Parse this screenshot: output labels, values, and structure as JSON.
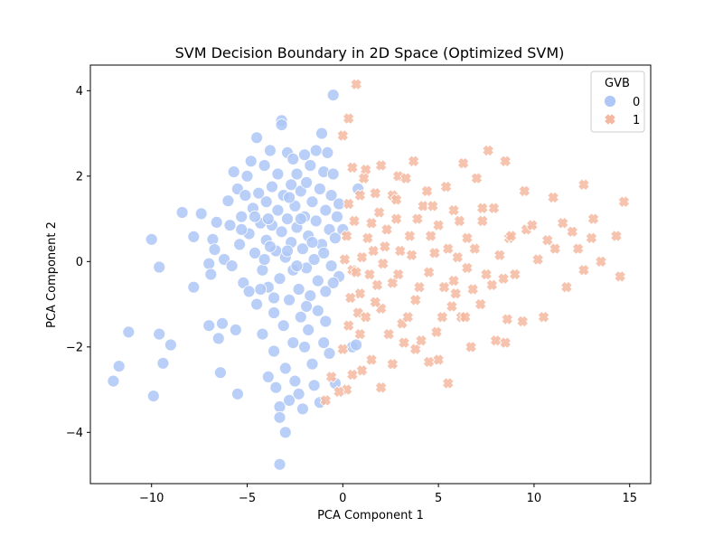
{
  "chart_data": {
    "type": "scatter",
    "title": "SVM Decision Boundary in 2D Space (Optimized SVM)",
    "xlabel": "PCA Component 1",
    "ylabel": "PCA Component 2",
    "xlim": [
      -13.2,
      16.1
    ],
    "ylim": [
      -5.2,
      4.6
    ],
    "xticks": [
      -10,
      -5,
      0,
      5,
      10,
      15
    ],
    "yticks": [
      -4,
      -2,
      0,
      2,
      4
    ],
    "grid": false,
    "legend": {
      "title": "GVB",
      "placement": "top-right",
      "entries": [
        "0",
        "1"
      ]
    },
    "series": [
      {
        "name": "0",
        "marker": "circle",
        "color": "#aec7f7",
        "points": [
          [
            -12.0,
            -2.8
          ],
          [
            -11.7,
            -2.45
          ],
          [
            -11.2,
            -1.65
          ],
          [
            -9.9,
            -3.15
          ],
          [
            -10.0,
            0.52
          ],
          [
            -9.6,
            -0.13
          ],
          [
            -9.6,
            -1.7
          ],
          [
            -9.4,
            -2.38
          ],
          [
            -9.0,
            -1.95
          ],
          [
            -8.4,
            1.15
          ],
          [
            -7.8,
            0.58
          ],
          [
            -7.8,
            -0.6
          ],
          [
            -7.4,
            1.12
          ],
          [
            -7.0,
            -0.05
          ],
          [
            -6.9,
            -0.3
          ],
          [
            -6.8,
            0.52
          ],
          [
            -6.7,
            0.28
          ],
          [
            -7.0,
            -1.5
          ],
          [
            -6.6,
            0.92
          ],
          [
            -6.5,
            -1.8
          ],
          [
            -6.4,
            -2.6
          ],
          [
            -6.3,
            -1.45
          ],
          [
            -6.2,
            0.05
          ],
          [
            -6.0,
            1.42
          ],
          [
            -5.9,
            0.85
          ],
          [
            -5.8,
            -0.1
          ],
          [
            -5.7,
            2.1
          ],
          [
            -5.6,
            -1.6
          ],
          [
            -5.5,
            -3.1
          ],
          [
            -5.5,
            1.7
          ],
          [
            -5.4,
            0.4
          ],
          [
            -5.3,
            1.05
          ],
          [
            -5.2,
            -0.5
          ],
          [
            -5.1,
            1.55
          ],
          [
            -5.0,
            2.0
          ],
          [
            -4.9,
            0.65
          ],
          [
            -4.9,
            -0.7
          ],
          [
            -4.8,
            2.35
          ],
          [
            -4.7,
            1.25
          ],
          [
            -4.6,
            0.2
          ],
          [
            -4.5,
            -1.0
          ],
          [
            -4.5,
            2.9
          ],
          [
            -4.4,
            1.6
          ],
          [
            -4.3,
            0.9
          ],
          [
            -4.2,
            -0.2
          ],
          [
            -4.2,
            -1.7
          ],
          [
            -4.1,
            2.25
          ],
          [
            -4.0,
            1.4
          ],
          [
            -4.0,
            0.5
          ],
          [
            -3.9,
            -2.7
          ],
          [
            -3.9,
            -0.6
          ],
          [
            -3.8,
            2.6
          ],
          [
            -3.7,
            1.75
          ],
          [
            -3.7,
            0.85
          ],
          [
            -3.6,
            -1.2
          ],
          [
            -3.6,
            -2.1
          ],
          [
            -3.5,
            0.25
          ],
          [
            -3.5,
            -2.95
          ],
          [
            -3.4,
            1.2
          ],
          [
            -3.4,
            2.05
          ],
          [
            -3.3,
            -0.4
          ],
          [
            -3.3,
            -3.4
          ],
          [
            -3.3,
            -3.65
          ],
          [
            -3.3,
            -4.75
          ],
          [
            -3.2,
            0.7
          ],
          [
            -3.2,
            3.3
          ],
          [
            -3.2,
            3.2
          ],
          [
            -3.1,
            1.55
          ],
          [
            -3.1,
            -1.5
          ],
          [
            -3.0,
            0.1
          ],
          [
            -3.0,
            -2.5
          ],
          [
            -3.0,
            -4.0
          ],
          [
            -2.9,
            2.55
          ],
          [
            -2.9,
            1.0
          ],
          [
            -2.8,
            -0.9
          ],
          [
            -2.8,
            -3.25
          ],
          [
            -2.7,
            0.45
          ],
          [
            -2.7,
            1.8
          ],
          [
            -2.6,
            2.4
          ],
          [
            -2.6,
            -0.2
          ],
          [
            -2.6,
            -1.9
          ],
          [
            -2.5,
            1.3
          ],
          [
            -2.5,
            -2.8
          ],
          [
            -2.4,
            0.8
          ],
          [
            -2.4,
            2.05
          ],
          [
            -2.3,
            -0.65
          ],
          [
            -2.3,
            -3.1
          ],
          [
            -2.2,
            1.65
          ],
          [
            -2.2,
            -1.3
          ],
          [
            -2.1,
            0.3
          ],
          [
            -2.1,
            -3.45
          ],
          [
            -2.0,
            2.5
          ],
          [
            -2.0,
            1.05
          ],
          [
            -2.0,
            -2.0
          ],
          [
            -1.9,
            -0.15
          ],
          [
            -1.9,
            1.85
          ],
          [
            -1.8,
            0.6
          ],
          [
            -1.8,
            -1.6
          ],
          [
            -1.7,
            2.25
          ],
          [
            -1.7,
            -0.8
          ],
          [
            -1.6,
            1.4
          ],
          [
            -1.6,
            -2.4
          ],
          [
            -1.5,
            0.05
          ],
          [
            -1.5,
            -2.9
          ],
          [
            -1.4,
            2.6
          ],
          [
            -1.4,
            0.95
          ],
          [
            -1.3,
            -0.45
          ],
          [
            -1.3,
            -1.15
          ],
          [
            -1.2,
            1.7
          ],
          [
            -1.2,
            -3.3
          ],
          [
            -1.1,
            3.0
          ],
          [
            -1.1,
            0.4
          ],
          [
            -1.0,
            -1.9
          ],
          [
            -1.0,
            2.1
          ],
          [
            -0.9,
            1.2
          ],
          [
            -0.9,
            -0.7
          ],
          [
            -0.8,
            2.55
          ],
          [
            -0.7,
            0.75
          ],
          [
            -0.7,
            -2.15
          ],
          [
            -0.6,
            1.55
          ],
          [
            -0.6,
            -0.1
          ],
          [
            -0.5,
            3.9
          ],
          [
            -0.5,
            2.05
          ],
          [
            -0.4,
            0.55
          ],
          [
            -0.4,
            -2.85
          ],
          [
            -0.3,
            1.05
          ],
          [
            -0.2,
            -0.35
          ],
          [
            -0.2,
            1.35
          ],
          [
            0.0,
            0.75
          ],
          [
            0.5,
            -2.0
          ],
          [
            0.7,
            -1.95
          ],
          [
            0.8,
            1.7
          ],
          [
            -4.6,
            1.05
          ],
          [
            -3.8,
            0.35
          ],
          [
            -2.9,
            0.25
          ],
          [
            -2.2,
            1.0
          ],
          [
            -1.6,
            0.45
          ],
          [
            -3.6,
            -0.85
          ],
          [
            -2.4,
            -0.1
          ],
          [
            -4.1,
            0.05
          ],
          [
            -1.0,
            0.2
          ],
          [
            -0.5,
            -0.5
          ],
          [
            -1.9,
            -1.05
          ],
          [
            -3.9,
            1.0
          ],
          [
            -2.8,
            1.5
          ],
          [
            -5.3,
            0.75
          ],
          [
            -4.3,
            -0.65
          ],
          [
            -0.9,
            -1.4
          ]
        ]
      },
      {
        "name": "1",
        "marker": "x",
        "color": "#f4b8a0",
        "points": [
          [
            0.7,
            4.15
          ],
          [
            0.3,
            3.35
          ],
          [
            0.0,
            2.95
          ],
          [
            0.5,
            2.2
          ],
          [
            1.2,
            2.15
          ],
          [
            1.7,
            1.6
          ],
          [
            2.0,
            2.25
          ],
          [
            2.9,
            2.0
          ],
          [
            3.7,
            2.35
          ],
          [
            4.4,
            1.65
          ],
          [
            5.4,
            1.75
          ],
          [
            6.3,
            2.3
          ],
          [
            7.0,
            1.95
          ],
          [
            7.6,
            2.6
          ],
          [
            8.5,
            2.35
          ],
          [
            9.5,
            1.65
          ],
          [
            11.0,
            1.5
          ],
          [
            12.6,
            1.8
          ],
          [
            14.7,
            1.4
          ],
          [
            13.1,
            1.0
          ],
          [
            14.3,
            0.6
          ],
          [
            13.0,
            0.55
          ],
          [
            12.3,
            0.3
          ],
          [
            11.1,
            0.3
          ],
          [
            10.7,
            0.5
          ],
          [
            10.2,
            0.05
          ],
          [
            9.6,
            0.75
          ],
          [
            8.7,
            0.55
          ],
          [
            7.9,
            1.25
          ],
          [
            7.3,
            0.95
          ],
          [
            6.5,
            0.55
          ],
          [
            5.8,
            1.2
          ],
          [
            5.0,
            0.85
          ],
          [
            4.2,
            1.3
          ],
          [
            3.5,
            0.6
          ],
          [
            2.8,
            1.0
          ],
          [
            2.2,
            0.35
          ],
          [
            1.5,
            0.9
          ],
          [
            1.0,
            0.1
          ],
          [
            0.5,
            -0.2
          ],
          [
            0.2,
            0.6
          ],
          [
            0.9,
            -0.75
          ],
          [
            1.4,
            -0.3
          ],
          [
            2.0,
            -1.1
          ],
          [
            2.6,
            -0.5
          ],
          [
            3.1,
            -1.45
          ],
          [
            3.8,
            -0.9
          ],
          [
            4.5,
            -0.25
          ],
          [
            5.2,
            -1.3
          ],
          [
            5.9,
            -0.75
          ],
          [
            6.5,
            -0.15
          ],
          [
            7.2,
            -1.0
          ],
          [
            7.8,
            -0.55
          ],
          [
            8.6,
            -1.35
          ],
          [
            9.4,
            -1.4
          ],
          [
            10.5,
            -1.3
          ],
          [
            11.7,
            -0.6
          ],
          [
            12.6,
            -0.2
          ],
          [
            13.5,
            0.0
          ],
          [
            14.5,
            -0.35
          ],
          [
            8.0,
            -1.85
          ],
          [
            8.5,
            -1.9
          ],
          [
            6.7,
            -2.0
          ],
          [
            5.5,
            -2.85
          ],
          [
            5.0,
            -2.3
          ],
          [
            4.5,
            -2.35
          ],
          [
            3.8,
            -2.05
          ],
          [
            3.2,
            -1.9
          ],
          [
            2.6,
            -2.4
          ],
          [
            2.0,
            -2.95
          ],
          [
            1.5,
            -2.3
          ],
          [
            1.0,
            -2.55
          ],
          [
            0.5,
            -2.65
          ],
          [
            0.2,
            -3.0
          ],
          [
            0.0,
            -2.05
          ],
          [
            -0.2,
            -3.05
          ],
          [
            -0.6,
            -2.7
          ],
          [
            -0.9,
            -3.25
          ],
          [
            0.8,
            -1.2
          ],
          [
            1.7,
            -0.95
          ],
          [
            2.4,
            -1.7
          ],
          [
            3.4,
            -1.3
          ],
          [
            4.1,
            -1.85
          ],
          [
            4.9,
            -1.65
          ],
          [
            5.7,
            -1.05
          ],
          [
            6.2,
            -1.3
          ],
          [
            3.0,
            0.25
          ],
          [
            1.9,
            1.15
          ],
          [
            0.9,
            1.55
          ],
          [
            1.3,
            0.55
          ],
          [
            2.6,
            1.55
          ],
          [
            3.3,
            1.95
          ],
          [
            4.6,
            0.6
          ],
          [
            5.5,
            0.3
          ],
          [
            6.1,
            0.95
          ],
          [
            6.9,
            0.3
          ],
          [
            7.5,
            -0.3
          ],
          [
            8.2,
            0.15
          ],
          [
            9.0,
            -0.3
          ],
          [
            11.5,
            0.9
          ],
          [
            0.3,
            1.35
          ],
          [
            0.6,
            0.95
          ],
          [
            1.1,
            1.95
          ],
          [
            0.7,
            -0.25
          ],
          [
            1.8,
            -0.55
          ],
          [
            2.3,
            0.75
          ],
          [
            2.9,
            -0.3
          ],
          [
            3.6,
            0.15
          ],
          [
            4.0,
            -0.6
          ],
          [
            4.8,
            0.2
          ],
          [
            5.3,
            -0.6
          ],
          [
            6.0,
            0.1
          ],
          [
            0.1,
            0.05
          ],
          [
            0.4,
            -0.85
          ],
          [
            1.6,
            0.25
          ],
          [
            2.1,
            -0.05
          ],
          [
            0.9,
            -1.7
          ],
          [
            2.8,
            1.45
          ],
          [
            3.9,
            1.0
          ],
          [
            4.7,
            1.3
          ],
          [
            8.8,
            0.6
          ],
          [
            7.3,
            1.25
          ],
          [
            5.8,
            -0.45
          ],
          [
            6.8,
            -0.65
          ],
          [
            9.9,
            0.85
          ],
          [
            12.0,
            0.7
          ],
          [
            8.4,
            -0.4
          ],
          [
            6.4,
            -1.3
          ],
          [
            0.3,
            -1.5
          ],
          [
            1.2,
            -1.3
          ]
        ]
      }
    ]
  }
}
